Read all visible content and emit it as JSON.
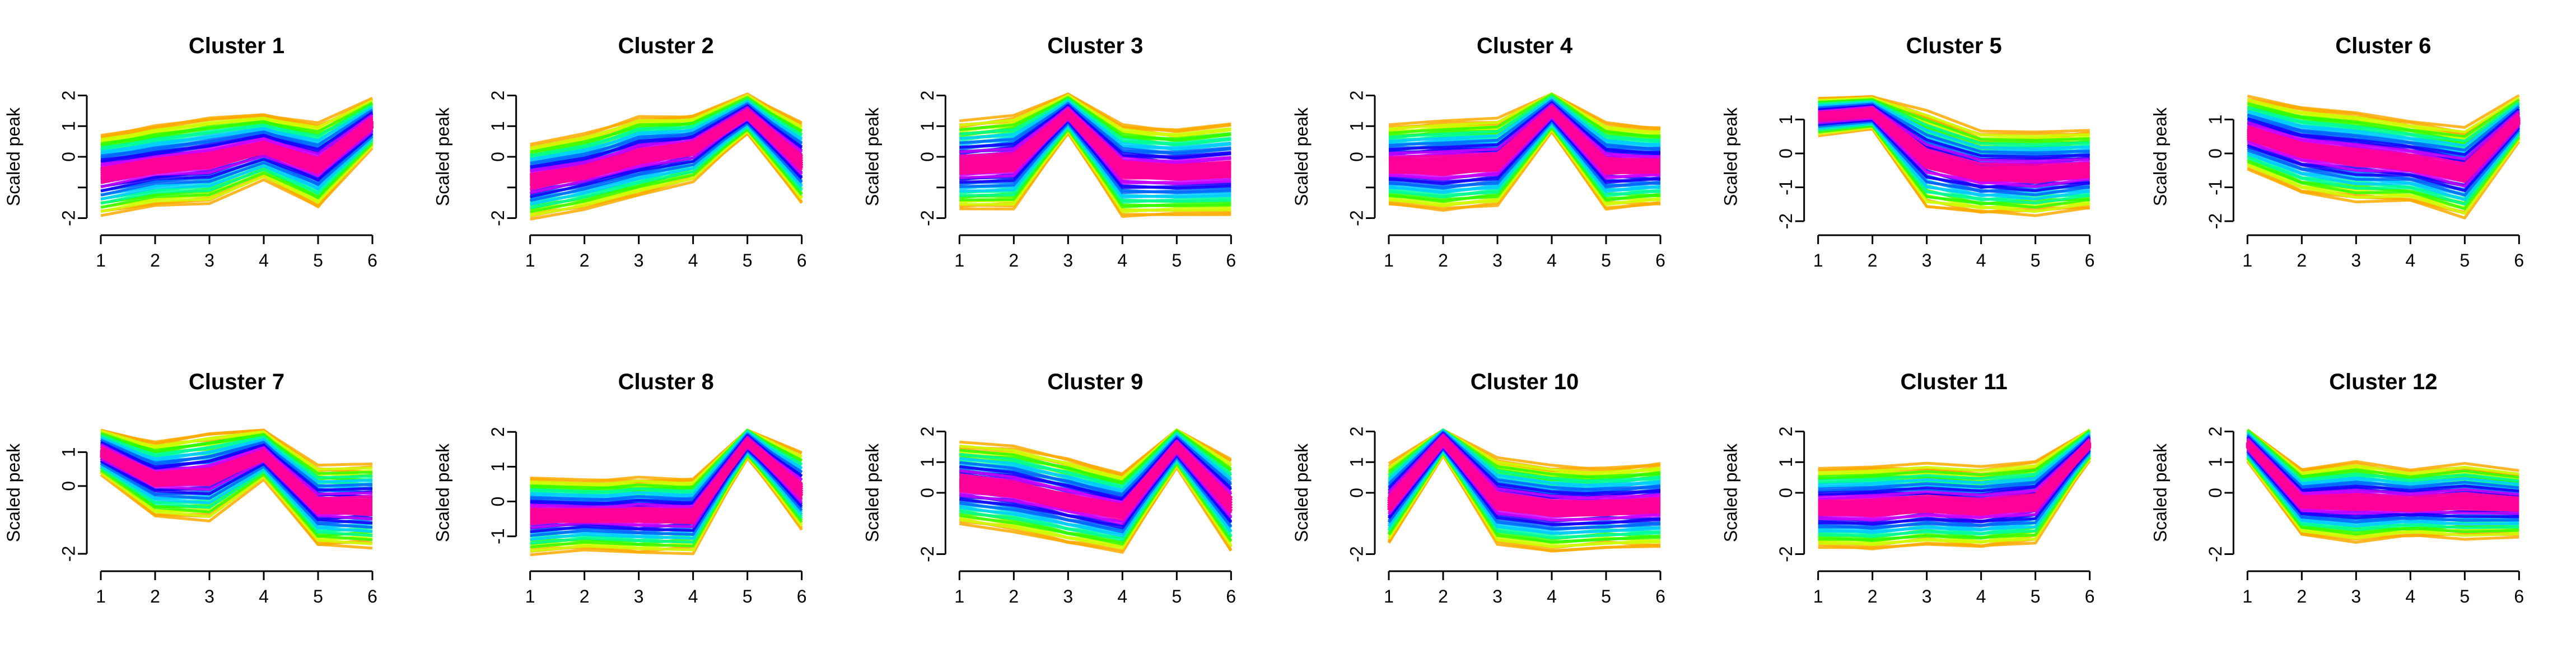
{
  "chart_data": [
    {
      "type": "line",
      "title": "Cluster 1",
      "xlabel": "",
      "ylabel": "Scaled peak",
      "x": [
        1,
        2,
        3,
        4,
        5,
        6
      ],
      "xticks": [
        1,
        2,
        3,
        4,
        5,
        6
      ],
      "yticks": [
        -2,
        -1,
        0,
        1,
        2
      ],
      "ytick_labels": [
        "-2",
        "",
        "0",
        "1",
        "2"
      ],
      "ylim": [
        -2.1,
        2.1
      ],
      "centers": [
        -0.6,
        -0.3,
        -0.1,
        0.3,
        -0.3,
        1.1
      ],
      "spread": [
        1.2,
        1.3,
        1.3,
        1.0,
        1.3,
        0.7
      ],
      "center_series": "blue",
      "outer_series": "orange",
      "colors": [
        "#ff0099",
        "#cc00ff",
        "#1a00ff",
        "#0066ff",
        "#00ccff",
        "#00ff99",
        "#33ff00",
        "#ccff00",
        "#ffaa00"
      ]
    },
    {
      "type": "line",
      "title": "Cluster 2",
      "xlabel": "",
      "ylabel": "Scaled peak",
      "x": [
        1,
        2,
        3,
        4,
        5,
        6
      ],
      "xticks": [
        1,
        2,
        3,
        4,
        5,
        6
      ],
      "yticks": [
        -2,
        -1,
        0,
        1,
        2
      ],
      "ytick_labels": [
        "-2",
        "",
        "0",
        "1",
        "2"
      ],
      "ylim": [
        -2.1,
        2.1
      ],
      "centers": [
        -0.8,
        -0.5,
        0.0,
        0.3,
        1.4,
        -0.2
      ],
      "spread": [
        1.1,
        1.2,
        1.2,
        1.0,
        0.6,
        1.2
      ],
      "center_series": "blue",
      "outer_series": "orange",
      "colors": [
        "#ff0099",
        "#cc00ff",
        "#1a00ff",
        "#0066ff",
        "#00ccff",
        "#00ff99",
        "#33ff00",
        "#ccff00",
        "#ffaa00"
      ]
    },
    {
      "type": "line",
      "title": "Cluster 3",
      "xlabel": "",
      "ylabel": "Scaled peak",
      "x": [
        1,
        2,
        3,
        4,
        5,
        6
      ],
      "xticks": [
        1,
        2,
        3,
        4,
        5,
        6
      ],
      "yticks": [
        -2,
        -1,
        0,
        1,
        2
      ],
      "ytick_labels": [
        "-2",
        "",
        "0",
        "1",
        "2"
      ],
      "ylim": [
        -2.1,
        2.1
      ],
      "centers": [
        -0.3,
        -0.2,
        1.4,
        -0.4,
        -0.5,
        -0.4
      ],
      "spread": [
        1.3,
        1.4,
        0.6,
        1.4,
        1.3,
        1.4
      ],
      "center_series": "magenta",
      "outer_series": "orange",
      "colors": [
        "#ff0099",
        "#cc00ff",
        "#1a00ff",
        "#0066ff",
        "#00ccff",
        "#00ff99",
        "#33ff00",
        "#ccff00",
        "#ffaa00"
      ]
    },
    {
      "type": "line",
      "title": "Cluster 4",
      "xlabel": "",
      "ylabel": "Scaled peak",
      "x": [
        1,
        2,
        3,
        4,
        5,
        6
      ],
      "xticks": [
        1,
        2,
        3,
        4,
        5,
        6
      ],
      "yticks": [
        -2,
        -1,
        0,
        1,
        2
      ],
      "ytick_labels": [
        "-2",
        "",
        "0",
        "1",
        "2"
      ],
      "ylim": [
        -2.1,
        2.1
      ],
      "centers": [
        -0.3,
        -0.3,
        -0.2,
        1.5,
        -0.3,
        -0.3
      ],
      "spread": [
        1.2,
        1.3,
        1.3,
        0.6,
        1.3,
        1.2
      ],
      "center_series": "magenta",
      "outer_series": "orange",
      "colors": [
        "#ff0099",
        "#cc00ff",
        "#1a00ff",
        "#0066ff",
        "#00ccff",
        "#00ff99",
        "#33ff00",
        "#ccff00",
        "#ffaa00"
      ]
    },
    {
      "type": "line",
      "title": "Cluster 5",
      "xlabel": "",
      "ylabel": "Scaled peak",
      "x": [
        1,
        2,
        3,
        4,
        5,
        6
      ],
      "xticks": [
        1,
        2,
        3,
        4,
        5,
        6
      ],
      "yticks": [
        -2,
        -1,
        0,
        1
      ],
      "ytick_labels": [
        "-2",
        "-1",
        "0",
        "1"
      ],
      "ylim": [
        -2.0,
        1.8
      ],
      "centers": [
        1.1,
        1.2,
        -0.2,
        -0.6,
        -0.6,
        -0.5
      ],
      "spread": [
        0.5,
        0.4,
        1.3,
        1.1,
        1.1,
        1.1
      ],
      "center_series": "magenta",
      "outer_series": "orange",
      "colors": [
        "#ff0099",
        "#cc00ff",
        "#1a00ff",
        "#0066ff",
        "#00ccff",
        "#00ff99",
        "#33ff00",
        "#ccff00",
        "#ffaa00"
      ]
    },
    {
      "type": "line",
      "title": "Cluster 6",
      "xlabel": "",
      "ylabel": "Scaled peak",
      "x": [
        1,
        2,
        3,
        4,
        5,
        6
      ],
      "xticks": [
        1,
        2,
        3,
        4,
        5,
        6
      ],
      "yticks": [
        -2,
        -1,
        0,
        1
      ],
      "ytick_labels": [
        "-2",
        "-1",
        "0",
        "1"
      ],
      "ylim": [
        -2.0,
        1.8
      ],
      "centers": [
        0.6,
        0.1,
        -0.1,
        -0.3,
        -0.6,
        1.0
      ],
      "spread": [
        1.0,
        1.2,
        1.2,
        1.1,
        1.2,
        0.6
      ],
      "center_series": "purple",
      "outer_series": "orange",
      "colors": [
        "#ff0099",
        "#cc00ff",
        "#1a00ff",
        "#0066ff",
        "#00ccff",
        "#00ff99",
        "#33ff00",
        "#ccff00",
        "#ffaa00"
      ]
    },
    {
      "type": "line",
      "title": "Cluster 7",
      "xlabel": "",
      "ylabel": "Scaled peak",
      "x": [
        1,
        2,
        3,
        4,
        5,
        6
      ],
      "xticks": [
        1,
        2,
        3,
        4,
        5,
        6
      ],
      "yticks": [
        -2,
        0,
        1
      ],
      "ytick_labels": [
        "-2",
        "0",
        "1"
      ],
      "ylim": [
        -2.1,
        1.7
      ],
      "centers": [
        1.0,
        0.2,
        0.3,
        0.9,
        -0.6,
        -0.6
      ],
      "spread": [
        0.6,
        1.1,
        1.2,
        0.7,
        1.1,
        1.1
      ],
      "center_series": "blue",
      "outer_series": "orange",
      "colors": [
        "#ff0099",
        "#cc00ff",
        "#1a00ff",
        "#0066ff",
        "#00ccff",
        "#00ff99",
        "#33ff00",
        "#ccff00",
        "#ffaa00"
      ]
    },
    {
      "type": "line",
      "title": "Cluster 8",
      "xlabel": "",
      "ylabel": "Scaled peak",
      "x": [
        1,
        2,
        3,
        4,
        5,
        6
      ],
      "xticks": [
        1,
        2,
        3,
        4,
        5,
        6
      ],
      "yticks": [
        -1,
        0,
        1,
        2
      ],
      "ytick_labels": [
        "-1",
        "0",
        "1",
        "2"
      ],
      "ylim": [
        -1.6,
        2.1
      ],
      "centers": [
        -0.4,
        -0.4,
        -0.4,
        -0.4,
        1.7,
        0.3
      ],
      "spread": [
        1.0,
        1.0,
        1.0,
        1.0,
        0.4,
        1.0
      ],
      "center_series": "magenta",
      "outer_series": "orange",
      "colors": [
        "#ff0099",
        "#cc00ff",
        "#1a00ff",
        "#0066ff",
        "#00ccff",
        "#00ff99",
        "#33ff00",
        "#ccff00",
        "#ffaa00"
      ]
    },
    {
      "type": "line",
      "title": "Cluster 9",
      "xlabel": "",
      "ylabel": "Scaled peak",
      "x": [
        1,
        2,
        3,
        4,
        5,
        6
      ],
      "xticks": [
        1,
        2,
        3,
        4,
        5,
        6
      ],
      "yticks": [
        -2,
        0,
        1,
        2
      ],
      "ytick_labels": [
        "-2",
        "0",
        "1",
        "2"
      ],
      "ylim": [
        -2.1,
        2.1
      ],
      "centers": [
        0.3,
        0.1,
        -0.3,
        -0.6,
        1.5,
        -0.4
      ],
      "spread": [
        1.2,
        1.3,
        1.3,
        1.2,
        0.6,
        1.4
      ],
      "center_series": "purple",
      "outer_series": "orange",
      "colors": [
        "#ff0099",
        "#cc00ff",
        "#1a00ff",
        "#0066ff",
        "#00ccff",
        "#00ff99",
        "#33ff00",
        "#ccff00",
        "#ffaa00"
      ]
    },
    {
      "type": "line",
      "title": "Cluster 10",
      "xlabel": "",
      "ylabel": "Scaled peak",
      "x": [
        1,
        2,
        3,
        4,
        5,
        6
      ],
      "xticks": [
        1,
        2,
        3,
        4,
        5,
        6
      ],
      "yticks": [
        -2,
        0,
        1,
        2
      ],
      "ytick_labels": [
        "-2",
        "0",
        "1",
        "2"
      ],
      "ylim": [
        -2.1,
        2.1
      ],
      "centers": [
        -0.4,
        1.7,
        -0.3,
        -0.5,
        -0.5,
        -0.4
      ],
      "spread": [
        1.2,
        0.4,
        1.3,
        1.3,
        1.2,
        1.3
      ],
      "center_series": "magenta",
      "outer_series": "orange",
      "colors": [
        "#ff0099",
        "#cc00ff",
        "#1a00ff",
        "#0066ff",
        "#00ccff",
        "#00ff99",
        "#33ff00",
        "#ccff00",
        "#ffaa00"
      ]
    },
    {
      "type": "line",
      "title": "Cluster 11",
      "xlabel": "",
      "ylabel": "Scaled peak",
      "x": [
        1,
        2,
        3,
        4,
        5,
        6
      ],
      "xticks": [
        1,
        2,
        3,
        4,
        5,
        6
      ],
      "yticks": [
        -2,
        0,
        1,
        2
      ],
      "ytick_labels": [
        "-2",
        "0",
        "1",
        "2"
      ],
      "ylim": [
        -2.1,
        2.1
      ],
      "centers": [
        -0.5,
        -0.5,
        -0.4,
        -0.5,
        -0.3,
        1.6
      ],
      "spread": [
        1.2,
        1.2,
        1.2,
        1.2,
        1.2,
        0.5
      ],
      "center_series": "magenta",
      "outer_series": "orange",
      "colors": [
        "#ff0099",
        "#cc00ff",
        "#1a00ff",
        "#0066ff",
        "#00ccff",
        "#00ff99",
        "#33ff00",
        "#ccff00",
        "#ffaa00"
      ]
    },
    {
      "type": "line",
      "title": "Cluster 12",
      "xlabel": "",
      "ylabel": "Scaled peak",
      "x": [
        1,
        2,
        3,
        4,
        5,
        6
      ],
      "xticks": [
        1,
        2,
        3,
        4,
        5,
        6
      ],
      "yticks": [
        -2,
        0,
        1,
        2
      ],
      "ytick_labels": [
        "-2",
        "0",
        "1",
        "2"
      ],
      "ylim": [
        -2.1,
        2.1
      ],
      "centers": [
        1.6,
        -0.3,
        -0.3,
        -0.4,
        -0.3,
        -0.4
      ],
      "spread": [
        0.5,
        1.0,
        1.2,
        1.0,
        1.1,
        1.0
      ],
      "center_series": "magenta",
      "outer_series": "orange",
      "colors": [
        "#ff0099",
        "#cc00ff",
        "#1a00ff",
        "#0066ff",
        "#00ccff",
        "#00ff99",
        "#33ff00",
        "#ccff00",
        "#ffaa00"
      ]
    }
  ]
}
